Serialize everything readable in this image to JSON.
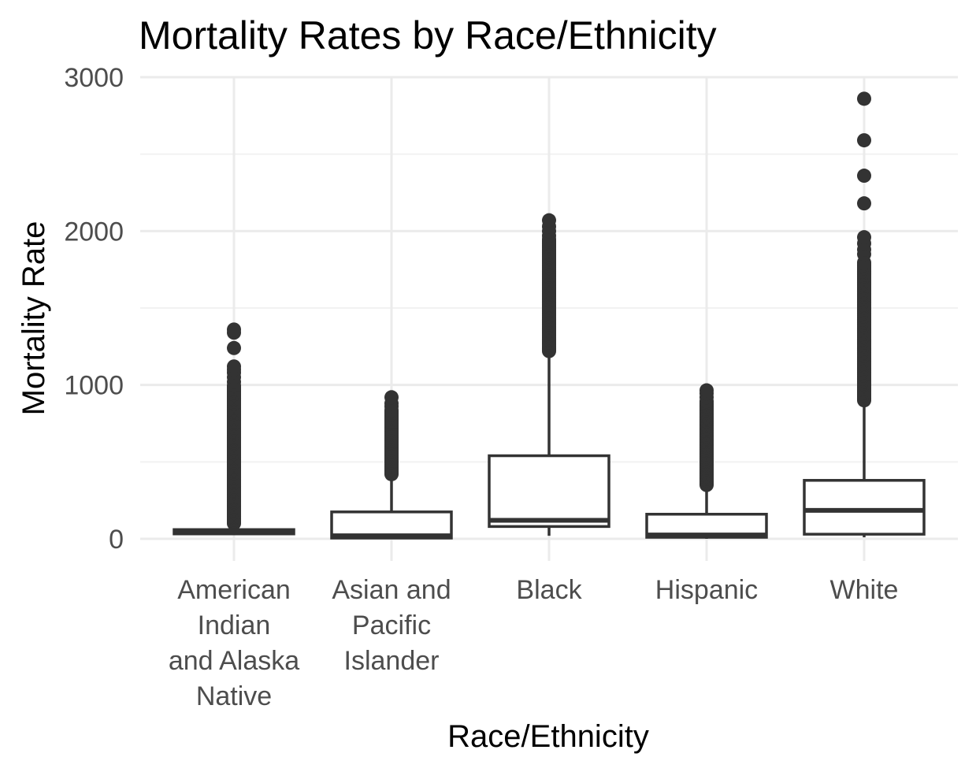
{
  "chart_data": {
    "type": "boxplot",
    "title": "Mortality Rates by Race/Ethnicity",
    "xlabel": "Race/Ethnicity",
    "ylabel": "Mortality Rate",
    "ylim": [
      -100,
      3050
    ],
    "y_ticks": [
      0,
      1000,
      2000,
      3000
    ],
    "grid": true,
    "colors": {
      "box_stroke": "#333333",
      "grid": "#ebebeb",
      "tick_text": "#4d4d4d"
    },
    "categories": [
      {
        "label": "American Indian and Alaska Native",
        "label_lines": [
          "American",
          "Indian",
          "and Alaska",
          "Native"
        ]
      },
      {
        "label": "Asian and Pacific Islander",
        "label_lines": [
          "Asian and",
          "Pacific",
          "Islander"
        ]
      },
      {
        "label": "Black",
        "label_lines": [
          "Black"
        ]
      },
      {
        "label": "Hispanic",
        "label_lines": [
          "Hispanic"
        ]
      },
      {
        "label": "White",
        "label_lines": [
          "White"
        ]
      }
    ],
    "boxes": [
      {
        "category": "American Indian and Alaska Native",
        "whisker_low": 30,
        "q1": 32,
        "median": 45,
        "q3": 60,
        "whisker_high": 100,
        "outlier_range": [
          100,
          1000
        ],
        "outliers": [
          1020,
          1050,
          1080,
          1100,
          1120,
          1240,
          1340,
          1360
        ]
      },
      {
        "category": "Asian and Pacific Islander",
        "whisker_low": 0,
        "q1": 5,
        "median": 20,
        "q3": 175,
        "whisker_high": 420,
        "outlier_range": [
          420,
          840
        ],
        "outliers": [
          860,
          880,
          920
        ]
      },
      {
        "category": "Black",
        "whisker_low": 20,
        "q1": 80,
        "median": 120,
        "q3": 540,
        "whisker_high": 1220,
        "outlier_range": [
          1220,
          1950
        ],
        "outliers": [
          1970,
          2000,
          2030,
          2070
        ]
      },
      {
        "category": "Hispanic",
        "whisker_low": 0,
        "q1": 10,
        "median": 25,
        "q3": 160,
        "whisker_high": 350,
        "outlier_range": [
          350,
          900
        ],
        "outliers": [
          920,
          945,
          965
        ]
      },
      {
        "category": "White",
        "whisker_low": 10,
        "q1": 30,
        "median": 185,
        "q3": 380,
        "whisker_high": 900,
        "outlier_range": [
          900,
          1800
        ],
        "outliers": [
          1850,
          1880,
          1920,
          1960,
          2180,
          2360,
          2590,
          2860
        ]
      }
    ]
  }
}
